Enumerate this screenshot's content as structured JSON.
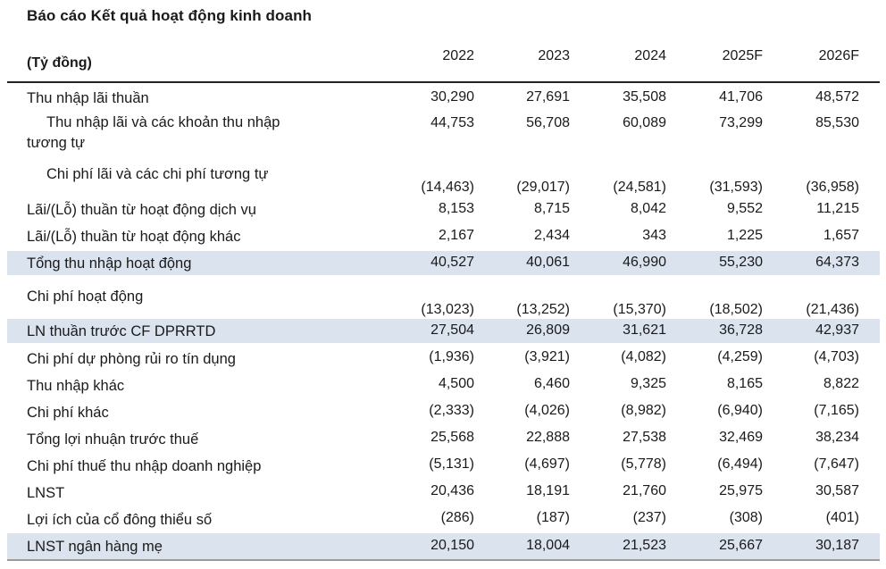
{
  "title": "Báo cáo Kết quả hoạt động kinh doanh",
  "unit_label": "(Tỷ đồng)",
  "years": [
    "2022",
    "2023",
    "2024",
    "2025F",
    "2026F"
  ],
  "rows": [
    {
      "label": "Thu nhập lãi thuần",
      "values": [
        "30,290",
        "27,691",
        "35,508",
        "41,706",
        "48,572"
      ]
    },
    {
      "label_lines": [
        "Thu nhập lãi và các khoản thu nhập",
        "tương tự"
      ],
      "values": [
        "44,753",
        "56,708",
        "60,089",
        "73,299",
        "85,530"
      ]
    },
    {
      "label": "Chi phí lãi và các chi phí tương tự",
      "values": [
        "(14,463)",
        "(29,017)",
        "(24,581)",
        "(31,593)",
        "(36,958)"
      ]
    },
    {
      "label": "Lãi/(Lỗ) thuần từ hoạt động dịch vụ",
      "values": [
        "8,153",
        "8,715",
        "8,042",
        "9,552",
        "11,215"
      ]
    },
    {
      "label": "Lãi/(Lỗ) thuần từ hoạt động khác",
      "values": [
        "2,167",
        "2,434",
        "343",
        "1,225",
        "1,657"
      ]
    },
    {
      "label": "Tổng thu nhập hoạt động",
      "values": [
        "40,527",
        "40,061",
        "46,990",
        "55,230",
        "64,373"
      ]
    },
    {
      "label": "Chi phí hoạt động",
      "values": [
        "(13,023)",
        "(13,252)",
        "(15,370)",
        "(18,502)",
        "(21,436)"
      ]
    },
    {
      "label": "LN thuần trước CF DPRRTD",
      "values": [
        "27,504",
        "26,809",
        "31,621",
        "36,728",
        "42,937"
      ]
    },
    {
      "label": "Chi phí dự phòng rủi ro tín dụng",
      "values": [
        "(1,936)",
        "(3,921)",
        "(4,082)",
        "(4,259)",
        "(4,703)"
      ]
    },
    {
      "label": "Thu nhập khác",
      "values": [
        "4,500",
        "6,460",
        "9,325",
        "8,165",
        "8,822"
      ]
    },
    {
      "label": "Chi phí khác",
      "values": [
        "(2,333)",
        "(4,026)",
        "(8,982)",
        "(6,940)",
        "(7,165)"
      ]
    },
    {
      "label": "Tổng lợi nhuận trước thuế",
      "values": [
        "25,568",
        "22,888",
        "27,538",
        "32,469",
        "38,234"
      ]
    },
    {
      "label": "Chi phí thuế thu nhập doanh nghiệp",
      "values": [
        "(5,131)",
        "(4,697)",
        "(5,778)",
        "(6,494)",
        "(7,647)"
      ]
    },
    {
      "label": "LNST",
      "values": [
        "20,436",
        "18,191",
        "21,760",
        "25,975",
        "30,587"
      ]
    },
    {
      "label": "Lợi ích của cổ đông thiểu số",
      "values": [
        "(286)",
        "(187)",
        "(237)",
        "(308)",
        "(401)"
      ]
    },
    {
      "label": "LNST ngân hàng mẹ",
      "values": [
        "20,150",
        "18,004",
        "21,523",
        "25,667",
        "30,187"
      ]
    }
  ]
}
